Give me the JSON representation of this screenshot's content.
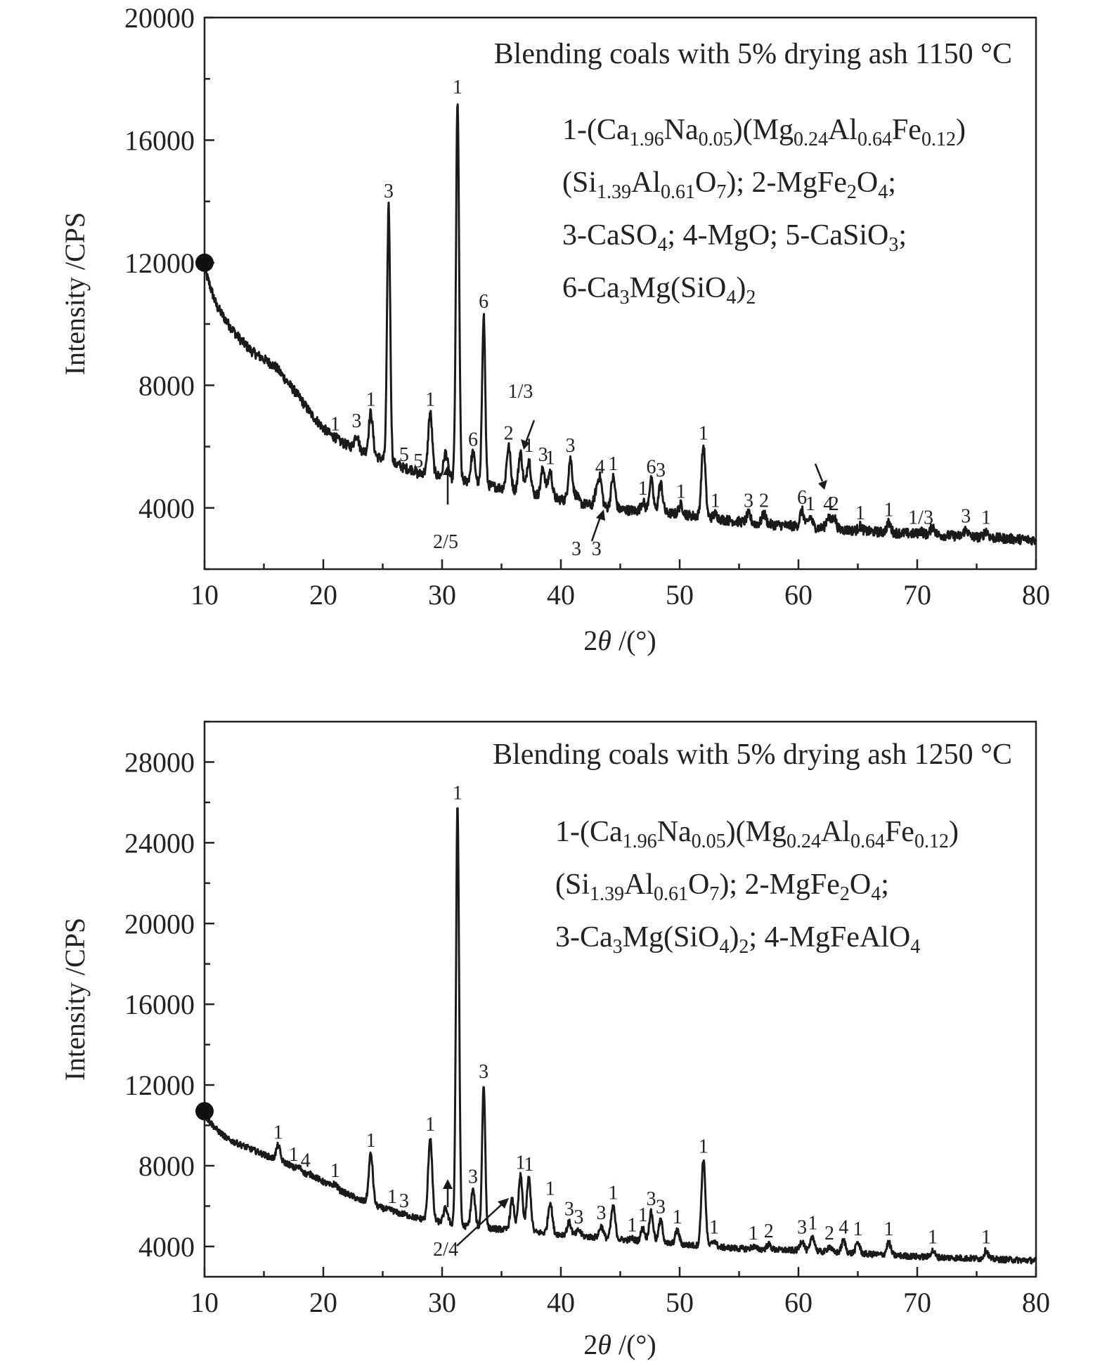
{
  "chart_data": [
    {
      "type": "line",
      "title": "Blending coals with 5% drying ash 1150 °C",
      "xlabel": "2θ /(°)",
      "ylabel": "Intensity /CPS",
      "xlim": [
        10,
        80
      ],
      "ylim": [
        2000,
        20000
      ],
      "xticks": [
        10,
        20,
        30,
        40,
        50,
        60,
        70,
        80
      ],
      "yticks": [
        4000,
        8000,
        12000,
        16000,
        20000
      ],
      "y_minor_step": 2000,
      "grid": false,
      "start_marker": {
        "x": 10,
        "y": 12000
      },
      "legend_lines": [
        "1-(Ca1.96Na0.05)(Mg0.24Al0.64Fe0.12)",
        "(Si1.39Al0.61O7); 2-MgFe2O4;",
        "3-CaSO4; 4-MgO; 5-CaSiO3;",
        "6-Ca3Mg(SiO4)2"
      ],
      "baseline": [
        [
          10,
          11800
        ],
        [
          11,
          10600
        ],
        [
          12,
          10000
        ],
        [
          13,
          9500
        ],
        [
          14,
          9100
        ],
        [
          15,
          8850
        ],
        [
          16,
          8600
        ],
        [
          17,
          8100
        ],
        [
          18,
          7600
        ],
        [
          19,
          7050
        ],
        [
          20,
          6600
        ],
        [
          21,
          6250
        ],
        [
          22,
          6050
        ],
        [
          23,
          5900
        ],
        [
          25,
          5600
        ],
        [
          27,
          5300
        ],
        [
          29,
          5100
        ],
        [
          31,
          4950
        ],
        [
          33,
          4800
        ],
        [
          35,
          4650
        ],
        [
          37,
          4500
        ],
        [
          39,
          4350
        ],
        [
          41,
          4200
        ],
        [
          43,
          4050
        ],
        [
          45,
          3950
        ],
        [
          48,
          3850
        ],
        [
          50,
          3800
        ],
        [
          53,
          3650
        ],
        [
          56,
          3500
        ],
        [
          60,
          3400
        ],
        [
          65,
          3250
        ],
        [
          70,
          3150
        ],
        [
          75,
          3050
        ],
        [
          80,
          2950
        ]
      ],
      "peaks": [
        {
          "x": 21.0,
          "y": 6300,
          "label": "1"
        },
        {
          "x": 22.8,
          "y": 6400,
          "label": "3"
        },
        {
          "x": 24.0,
          "y": 7100,
          "label": "1"
        },
        {
          "x": 25.5,
          "y": 13900,
          "label": "3"
        },
        {
          "x": 26.8,
          "y": 5300,
          "label": "5"
        },
        {
          "x": 28.0,
          "y": 5100,
          "label": "5"
        },
        {
          "x": 29.0,
          "y": 7100,
          "label": "1"
        },
        {
          "x": 30.3,
          "y": 5800,
          "label": "2/5"
        },
        {
          "x": 31.3,
          "y": 17300,
          "label": "1"
        },
        {
          "x": 32.6,
          "y": 5800,
          "label": "6"
        },
        {
          "x": 33.5,
          "y": 10300,
          "label": "6"
        },
        {
          "x": 35.6,
          "y": 6000,
          "label": "2"
        },
        {
          "x": 36.6,
          "y": 5800,
          "label": "1/3"
        },
        {
          "x": 37.3,
          "y": 5600,
          "label": "1"
        },
        {
          "x": 38.5,
          "y": 5300,
          "label": "3"
        },
        {
          "x": 39.1,
          "y": 5200,
          "label": "1"
        },
        {
          "x": 40.8,
          "y": 5600,
          "label": "3"
        },
        {
          "x": 41.3,
          "y": 4400,
          "label": "3"
        },
        {
          "x": 43.0,
          "y": 4500,
          "label": "3"
        },
        {
          "x": 43.3,
          "y": 4900,
          "label": "4"
        },
        {
          "x": 44.4,
          "y": 5000,
          "label": "1"
        },
        {
          "x": 46.9,
          "y": 4200,
          "label": "1"
        },
        {
          "x": 47.6,
          "y": 4900,
          "label": "6"
        },
        {
          "x": 48.4,
          "y": 4800,
          "label": "3"
        },
        {
          "x": 50.1,
          "y": 4100,
          "label": "1"
        },
        {
          "x": 52.0,
          "y": 6000,
          "label": "1"
        },
        {
          "x": 53.0,
          "y": 3800,
          "label": "1"
        },
        {
          "x": 55.8,
          "y": 3800,
          "label": "3"
        },
        {
          "x": 57.1,
          "y": 3800,
          "label": "2"
        },
        {
          "x": 60.3,
          "y": 3900,
          "label": "6"
        },
        {
          "x": 61.0,
          "y": 3700,
          "label": "1"
        },
        {
          "x": 62.5,
          "y": 3700,
          "label": "4"
        },
        {
          "x": 63.0,
          "y": 3700,
          "label": "2"
        },
        {
          "x": 65.2,
          "y": 3400,
          "label": "1"
        },
        {
          "x": 67.6,
          "y": 3500,
          "label": "1"
        },
        {
          "x": 70.3,
          "y": 3250,
          "label": "1/3"
        },
        {
          "x": 71.3,
          "y": 3400,
          "label": ""
        },
        {
          "x": 74.1,
          "y": 3300,
          "label": "3"
        },
        {
          "x": 75.8,
          "y": 3250,
          "label": "1"
        }
      ]
    },
    {
      "type": "line",
      "title": "Blending coals with 5% drying ash 1250 °C",
      "xlabel": "2θ /(°)",
      "ylabel": "Intensity /CPS",
      "xlim": [
        10,
        80
      ],
      "ylim": [
        2500,
        30000
      ],
      "xticks": [
        10,
        20,
        30,
        40,
        50,
        60,
        70,
        80
      ],
      "yticks": [
        4000,
        8000,
        12000,
        16000,
        20000,
        24000,
        28000
      ],
      "y_minor_step": 2000,
      "grid": false,
      "start_marker": {
        "x": 10,
        "y": 10700
      },
      "legend_lines": [
        "1-(Ca1.96Na0.05)(Mg0.24Al0.64Fe0.12)",
        "(Si1.39Al0.61O7); 2-MgFe2O4;",
        "3-Ca3Mg(SiO4)2; 4-MgFeAlO4"
      ],
      "baseline": [
        [
          10,
          10500
        ],
        [
          11,
          9800
        ],
        [
          12,
          9300
        ],
        [
          14,
          8800
        ],
        [
          16,
          8300
        ],
        [
          18,
          7900
        ],
        [
          20,
          7200
        ],
        [
          22,
          6600
        ],
        [
          24,
          6100
        ],
        [
          26,
          5700
        ],
        [
          28,
          5400
        ],
        [
          30,
          5200
        ],
        [
          32,
          5000
        ],
        [
          34,
          4900
        ],
        [
          36,
          4800
        ],
        [
          38,
          4700
        ],
        [
          40,
          4600
        ],
        [
          42,
          4500
        ],
        [
          44,
          4400
        ],
        [
          46,
          4300
        ],
        [
          48,
          4200
        ],
        [
          50,
          4100
        ],
        [
          55,
          3900
        ],
        [
          60,
          3800
        ],
        [
          65,
          3650
        ],
        [
          70,
          3500
        ],
        [
          75,
          3400
        ],
        [
          80,
          3300
        ]
      ],
      "peaks": [
        {
          "x": 16.2,
          "y": 9000,
          "label": "1"
        },
        {
          "x": 17.5,
          "y": 7900,
          "label": "1"
        },
        {
          "x": 18.5,
          "y": 7600,
          "label": "4"
        },
        {
          "x": 21.0,
          "y": 7100,
          "label": "1"
        },
        {
          "x": 23.0,
          "y": 6300,
          "label": ""
        },
        {
          "x": 24.0,
          "y": 8600,
          "label": "1"
        },
        {
          "x": 25.8,
          "y": 5800,
          "label": "1"
        },
        {
          "x": 26.8,
          "y": 5600,
          "label": "3"
        },
        {
          "x": 29.0,
          "y": 9400,
          "label": "1"
        },
        {
          "x": 30.3,
          "y": 5900,
          "label": "2/4"
        },
        {
          "x": 31.3,
          "y": 25800,
          "label": "1"
        },
        {
          "x": 32.6,
          "y": 6800,
          "label": "3"
        },
        {
          "x": 33.5,
          "y": 12000,
          "label": "3"
        },
        {
          "x": 35.9,
          "y": 6300,
          "label": ""
        },
        {
          "x": 36.6,
          "y": 7500,
          "label": "1"
        },
        {
          "x": 37.3,
          "y": 7400,
          "label": "1"
        },
        {
          "x": 39.1,
          "y": 6200,
          "label": "1"
        },
        {
          "x": 40.7,
          "y": 5200,
          "label": "3"
        },
        {
          "x": 41.5,
          "y": 4800,
          "label": "3"
        },
        {
          "x": 43.4,
          "y": 5000,
          "label": "3"
        },
        {
          "x": 44.4,
          "y": 6000,
          "label": "1"
        },
        {
          "x": 46.0,
          "y": 4400,
          "label": "1"
        },
        {
          "x": 46.9,
          "y": 4900,
          "label": "1"
        },
        {
          "x": 47.6,
          "y": 5700,
          "label": "3"
        },
        {
          "x": 48.4,
          "y": 5300,
          "label": "3"
        },
        {
          "x": 49.8,
          "y": 4800,
          "label": "1"
        },
        {
          "x": 52.0,
          "y": 8300,
          "label": "1"
        },
        {
          "x": 52.9,
          "y": 4300,
          "label": "1"
        },
        {
          "x": 56.2,
          "y": 4000,
          "label": "1"
        },
        {
          "x": 57.5,
          "y": 4100,
          "label": "2"
        },
        {
          "x": 60.3,
          "y": 4300,
          "label": "3"
        },
        {
          "x": 61.2,
          "y": 4500,
          "label": "1"
        },
        {
          "x": 62.6,
          "y": 4000,
          "label": "2"
        },
        {
          "x": 63.8,
          "y": 4300,
          "label": "4"
        },
        {
          "x": 65.0,
          "y": 4200,
          "label": "1"
        },
        {
          "x": 67.6,
          "y": 4200,
          "label": "1"
        },
        {
          "x": 71.3,
          "y": 3800,
          "label": "1"
        },
        {
          "x": 75.8,
          "y": 3800,
          "label": "1"
        }
      ]
    }
  ]
}
